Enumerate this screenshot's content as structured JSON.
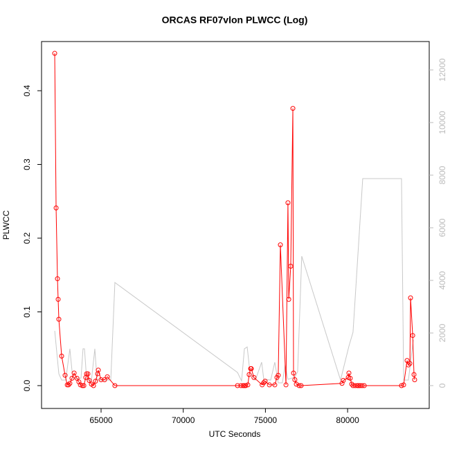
{
  "chart_data": {
    "type": "line",
    "title": "ORCAS RF07vlon PLWCC (Log)",
    "x_label": "UTC Seconds",
    "y_label": "PLWCC",
    "xlim": [
      61377,
      84967
    ],
    "ylim": [
      -0.031,
      0.4667
    ],
    "y2lim": [
      -868,
      13079
    ],
    "xticks": [
      65000,
      70000,
      75000,
      80000
    ],
    "yticks": [
      {
        "value": 0,
        "label": "0.0"
      },
      0.1,
      0.2,
      0.3,
      0.4
    ],
    "y2ticks": [
      0,
      2000,
      4000,
      6000,
      8000,
      10000,
      12000
    ],
    "y2_tick_color": "#bbbbbb",
    "series": [
      {
        "color": "#ff0000",
        "markers": true,
        "x": [
          62178,
          62263,
          62346,
          62388,
          62430,
          62600,
          62810,
          62940,
          63020,
          63100,
          63230,
          63360,
          63530,
          63650,
          63740,
          63860,
          63950,
          64070,
          64115,
          64200,
          64280,
          64410,
          64540,
          64660,
          64790,
          64830,
          65000,
          65210,
          65380,
          65840,
          73300,
          73510,
          73640,
          73720,
          73800,
          73930,
          74010,
          74100,
          74140,
          74300,
          74800,
          74900,
          74980,
          75240,
          75570,
          75700,
          75780,
          75910,
          76250,
          76370,
          76420,
          76540,
          76670,
          76710,
          76790,
          76880,
          77050,
          77170,
          79660,
          79740,
          80040,
          80080,
          80160,
          80250,
          80330,
          80460,
          80590,
          80670,
          80760,
          80880,
          81010,
          83280,
          83410,
          83620,
          83700,
          83790,
          83830,
          83960,
          84040,
          84080
        ],
        "values": [
          0.4507,
          0.241,
          0.145,
          0.117,
          0.09,
          0.04,
          0.014,
          0.001,
          0.001,
          0.003,
          0.01,
          0.017,
          0.01,
          0.005,
          0.001,
          0,
          0,
          0.011,
          0.016,
          0.016,
          0.007,
          0.002,
          0,
          0.006,
          0.016,
          0.021,
          0.008,
          0.008,
          0.012,
          0,
          0,
          0,
          0,
          0,
          0,
          0.001,
          0.015,
          0.023,
          0.023,
          0.011,
          0.001,
          0.004,
          0.006,
          0.001,
          0.001,
          0.011,
          0.014,
          0.191,
          0.001,
          0.248,
          0.117,
          0.162,
          0.376,
          0.017,
          0.008,
          0.002,
          0,
          0,
          0.003,
          0.007,
          0.011,
          0.017,
          0.01,
          0.002,
          0,
          0,
          0,
          0,
          0,
          0,
          0,
          0,
          0.001,
          0.034,
          0.028,
          0.03,
          0.119,
          0.068,
          0.015,
          0.008
        ]
      },
      {
        "color": "#c8c8c8",
        "axis": "y2",
        "markers": false,
        "x": [
          62180,
          62430,
          62600,
          62850,
          63100,
          63270,
          63570,
          63780,
          63900,
          63990,
          64120,
          64410,
          64620,
          64750,
          65000,
          65590,
          65840,
          73300,
          73550,
          73720,
          73890,
          74060,
          74390,
          74770,
          74900,
          75320,
          75570,
          75780,
          76030,
          76200,
          76370,
          76790,
          76960,
          77210,
          79570,
          80080,
          80330,
          80920,
          83280,
          83410,
          83700,
          84000
        ],
        "values": [
          2080,
          450,
          210,
          210,
          1400,
          320,
          260,
          290,
          1400,
          1400,
          240,
          180,
          1400,
          240,
          210,
          210,
          3920,
          500,
          180,
          1400,
          1470,
          500,
          210,
          890,
          240,
          210,
          890,
          105,
          105,
          790,
          240,
          320,
          530,
          4920,
          210,
          1500,
          2030,
          7870,
          7870,
          210,
          210,
          1740
        ]
      }
    ]
  }
}
